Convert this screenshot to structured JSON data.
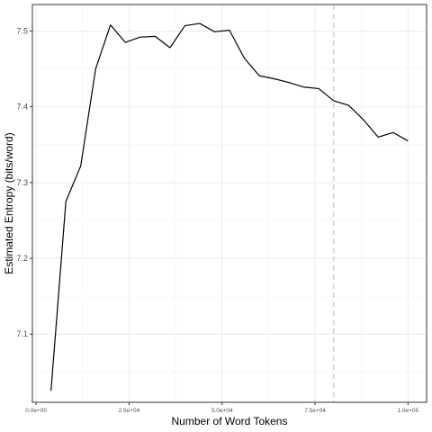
{
  "chart_data": {
    "type": "line",
    "title": "",
    "xlabel": "Number of Word Tokens",
    "ylabel": "Estimated Entropy (bits/word)",
    "xlim": [
      -1000,
      105000
    ],
    "ylim": [
      7.01,
      7.535
    ],
    "x_ticks": [
      0,
      25000,
      50000,
      75000,
      100000
    ],
    "x_tick_labels": [
      "0.0e+00",
      "2.5e+04",
      "5.0e+04",
      "7.5e+04",
      "1.0e+05"
    ],
    "y_ticks": [
      7.1,
      7.2,
      7.3,
      7.4,
      7.5
    ],
    "y_tick_labels": [
      "7.1",
      "7.2",
      "7.3",
      "7.4",
      "7.5"
    ],
    "grid": true,
    "vline": {
      "x": 80000,
      "style": "dashed",
      "color": "#cccccc"
    },
    "series": [
      {
        "color": "#000000",
        "x": [
          4000,
          8000,
          12000,
          16000,
          20000,
          24000,
          28000,
          32000,
          36000,
          40000,
          44000,
          48000,
          52000,
          56000,
          60000,
          64000,
          68000,
          72000,
          76000,
          80000,
          84000,
          88000,
          92000,
          96000,
          100000
        ],
        "y": [
          7.025,
          7.275,
          7.322,
          7.45,
          7.508,
          7.485,
          7.492,
          7.493,
          7.478,
          7.507,
          7.51,
          7.499,
          7.501,
          7.464,
          7.441,
          7.437,
          7.432,
          7.426,
          7.424,
          7.408,
          7.402,
          7.383,
          7.36,
          7.366,
          7.355
        ]
      }
    ]
  }
}
